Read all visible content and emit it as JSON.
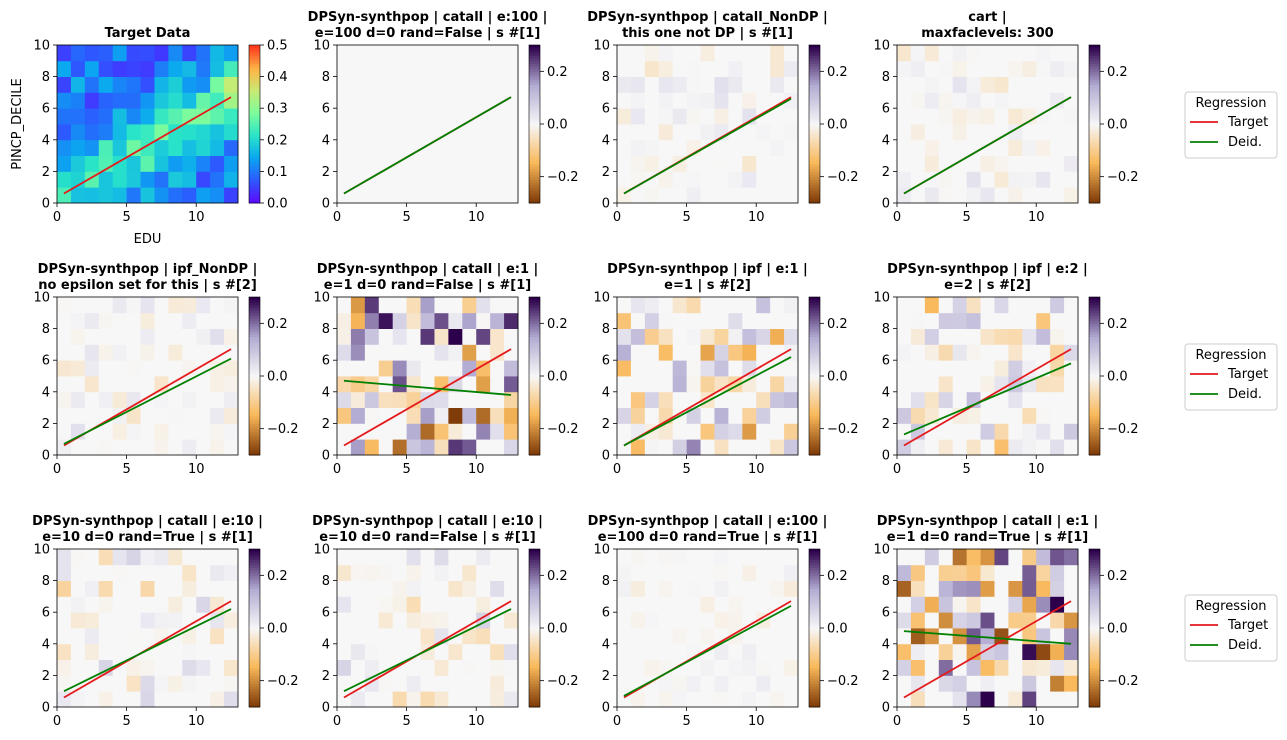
{
  "colors": {
    "target_line": "#e41a1c",
    "deid_line": "#008000",
    "target_cmap": [
      "#5b0cff",
      "#2c5bff",
      "#0aa8f0",
      "#29e4c8",
      "#7dfc9c",
      "#c7ec74",
      "#ffb347",
      "#ff3b1f"
    ],
    "diff_cmap_neg": "#7f3b08",
    "diff_cmap_mid": "#f7f7f7",
    "diff_cmap_pos": "#2d004b"
  },
  "legend": {
    "title": "Regression",
    "items": [
      {
        "label": "Target",
        "color": "#e41a1c"
      },
      {
        "label": "Deid.",
        "color": "#008000"
      }
    ]
  },
  "chart_data": [
    {
      "type": "heatmap",
      "title_lines": [
        "Target Data"
      ],
      "xlabel": "EDU",
      "ylabel": "PINCP_DECILE",
      "xlim": [
        0,
        13
      ],
      "ylim": [
        0,
        10
      ],
      "xticks": [
        "0",
        "5",
        "10"
      ],
      "yticks": [
        "0",
        "2",
        "4",
        "6",
        "8",
        "10"
      ],
      "colorbar": {
        "min": 0.0,
        "max": 0.5,
        "ticks": [
          "0.0",
          "0.1",
          "0.2",
          "0.3",
          "0.4",
          "0.5"
        ],
        "cmap": "rainbow"
      },
      "seed": 7,
      "intensity": 0.35,
      "target_line": [
        [
          0.5,
          0.6
        ],
        [
          12.5,
          6.7
        ]
      ],
      "deid_line": null
    },
    {
      "type": "heatmap",
      "title_lines": [
        "DPSyn-synthpop | catall | e:100 |",
        "e=100 d=0 rand=False | s #[1]"
      ],
      "xlim": [
        0,
        13
      ],
      "ylim": [
        0,
        10
      ],
      "xticks": [
        "0",
        "5",
        "10"
      ],
      "yticks": [
        "0",
        "2",
        "4",
        "6",
        "8",
        "10"
      ],
      "colorbar": {
        "min": -0.3,
        "max": 0.3,
        "ticks": [
          "0.2",
          "0.0",
          "−0.2"
        ],
        "cmap": "PuOr"
      },
      "seed": 1,
      "intensity": 0.0,
      "target_line": [
        [
          0.5,
          0.6
        ],
        [
          12.5,
          6.7
        ]
      ],
      "deid_line": [
        [
          0.5,
          0.6
        ],
        [
          12.5,
          6.7
        ]
      ]
    },
    {
      "type": "heatmap",
      "title_lines": [
        "DPSyn-synthpop | catall_NonDP |",
        "this one not DP | s #[1]"
      ],
      "xlim": [
        0,
        13
      ],
      "ylim": [
        0,
        10
      ],
      "xticks": [
        "0",
        "5",
        "10"
      ],
      "yticks": [
        "0",
        "2",
        "4",
        "6",
        "8",
        "10"
      ],
      "colorbar": {
        "min": -0.3,
        "max": 0.3,
        "ticks": [
          "0.2",
          "0.0",
          "−0.2"
        ],
        "cmap": "PuOr"
      },
      "seed": 2,
      "intensity": 0.12,
      "target_line": [
        [
          0.5,
          0.6
        ],
        [
          12.5,
          6.7
        ]
      ],
      "deid_line": [
        [
          0.5,
          0.6
        ],
        [
          12.5,
          6.6
        ]
      ]
    },
    {
      "type": "heatmap",
      "title_lines": [
        "cart |",
        "maxfaclevels: 300"
      ],
      "xlim": [
        0,
        13
      ],
      "ylim": [
        0,
        10
      ],
      "xticks": [
        "0",
        "5",
        "10"
      ],
      "yticks": [
        "0",
        "2",
        "4",
        "6",
        "8",
        "10"
      ],
      "colorbar": {
        "min": -0.3,
        "max": 0.3,
        "ticks": [
          "0.2",
          "0.0",
          "−0.2"
        ],
        "cmap": "PuOr"
      },
      "seed": 3,
      "intensity": 0.12,
      "target_line": [
        [
          0.5,
          0.6
        ],
        [
          12.5,
          6.7
        ]
      ],
      "deid_line": [
        [
          0.5,
          0.6
        ],
        [
          12.5,
          6.7
        ]
      ]
    },
    {
      "type": "heatmap",
      "title_lines": [
        "DPSyn-synthpop | ipf_NonDP |",
        "no epsilon set for this | s #[2]"
      ],
      "xlim": [
        0,
        13
      ],
      "ylim": [
        0,
        10
      ],
      "xticks": [
        "0",
        "5",
        "10"
      ],
      "yticks": [
        "0",
        "2",
        "4",
        "6",
        "8",
        "10"
      ],
      "colorbar": {
        "min": -0.3,
        "max": 0.3,
        "ticks": [
          "0.2",
          "0.0",
          "−0.2"
        ],
        "cmap": "PuOr"
      },
      "seed": 4,
      "intensity": 0.13,
      "target_line": [
        [
          0.5,
          0.6
        ],
        [
          12.5,
          6.7
        ]
      ],
      "deid_line": [
        [
          0.5,
          0.7
        ],
        [
          12.5,
          6.1
        ]
      ]
    },
    {
      "type": "heatmap",
      "title_lines": [
        "DPSyn-synthpop | catall | e:1 |",
        "e=1 d=0 rand=False | s #[1]"
      ],
      "xlim": [
        0,
        13
      ],
      "ylim": [
        0,
        10
      ],
      "xticks": [
        "0",
        "5",
        "10"
      ],
      "yticks": [
        "0",
        "2",
        "4",
        "6",
        "8",
        "10"
      ],
      "colorbar": {
        "min": -0.3,
        "max": 0.3,
        "ticks": [
          "0.2",
          "0.0",
          "−0.2"
        ],
        "cmap": "PuOr"
      },
      "seed": 5,
      "intensity": 0.9,
      "target_line": [
        [
          0.5,
          0.6
        ],
        [
          12.5,
          6.7
        ]
      ],
      "deid_line": [
        [
          0.5,
          4.7
        ],
        [
          12.5,
          3.8
        ]
      ]
    },
    {
      "type": "heatmap",
      "title_lines": [
        "DPSyn-synthpop | ipf | e:1 |",
        "e=1 | s #[2]"
      ],
      "xlim": [
        0,
        13
      ],
      "ylim": [
        0,
        10
      ],
      "xticks": [
        "0",
        "5",
        "10"
      ],
      "yticks": [
        "0",
        "2",
        "4",
        "6",
        "8",
        "10"
      ],
      "colorbar": {
        "min": -0.3,
        "max": 0.3,
        "ticks": [
          "0.2",
          "0.0",
          "−0.2"
        ],
        "cmap": "PuOr"
      },
      "seed": 6,
      "intensity": 0.55,
      "target_line": [
        [
          0.5,
          0.6
        ],
        [
          12.5,
          6.7
        ]
      ],
      "deid_line": [
        [
          0.5,
          0.6
        ],
        [
          12.5,
          6.2
        ]
      ]
    },
    {
      "type": "heatmap",
      "title_lines": [
        "DPSyn-synthpop | ipf | e:2 |",
        "e=2 | s #[2]"
      ],
      "xlim": [
        0,
        13
      ],
      "ylim": [
        0,
        10
      ],
      "xticks": [
        "0",
        "5",
        "10"
      ],
      "yticks": [
        "0",
        "2",
        "4",
        "6",
        "8",
        "10"
      ],
      "colorbar": {
        "min": -0.3,
        "max": 0.3,
        "ticks": [
          "0.2",
          "0.0",
          "−0.2"
        ],
        "cmap": "PuOr"
      },
      "seed": 8,
      "intensity": 0.4,
      "target_line": [
        [
          0.5,
          0.6
        ],
        [
          12.5,
          6.7
        ]
      ],
      "deid_line": [
        [
          0.5,
          1.3
        ],
        [
          12.5,
          5.8
        ]
      ]
    },
    {
      "type": "heatmap",
      "title_lines": [
        "DPSyn-synthpop | catall | e:10 |",
        "e=10 d=0 rand=True | s #[1]"
      ],
      "xlim": [
        0,
        13
      ],
      "ylim": [
        0,
        10
      ],
      "xticks": [
        "0",
        "5",
        "10"
      ],
      "yticks": [
        "0",
        "2",
        "4",
        "6",
        "8",
        "10"
      ],
      "colorbar": {
        "min": -0.3,
        "max": 0.3,
        "ticks": [
          "0.2",
          "0.0",
          "−0.2"
        ],
        "cmap": "PuOr"
      },
      "seed": 9,
      "intensity": 0.22,
      "target_line": [
        [
          0.5,
          0.6
        ],
        [
          12.5,
          6.7
        ]
      ],
      "deid_line": [
        [
          0.5,
          1.0
        ],
        [
          12.5,
          6.2
        ]
      ]
    },
    {
      "type": "heatmap",
      "title_lines": [
        "DPSyn-synthpop | catall | e:10 |",
        "e=10 d=0 rand=False | s #[1]"
      ],
      "xlim": [
        0,
        13
      ],
      "ylim": [
        0,
        10
      ],
      "xticks": [
        "0",
        "5",
        "10"
      ],
      "yticks": [
        "0",
        "2",
        "4",
        "6",
        "8",
        "10"
      ],
      "colorbar": {
        "min": -0.3,
        "max": 0.3,
        "ticks": [
          "0.2",
          "0.0",
          "−0.2"
        ],
        "cmap": "PuOr"
      },
      "seed": 10,
      "intensity": 0.2,
      "target_line": [
        [
          0.5,
          0.6
        ],
        [
          12.5,
          6.7
        ]
      ],
      "deid_line": [
        [
          0.5,
          1.0
        ],
        [
          12.5,
          6.2
        ]
      ]
    },
    {
      "type": "heatmap",
      "title_lines": [
        "DPSyn-synthpop | catall | e:100 |",
        "e=100 d=0 rand=True | s #[1]"
      ],
      "xlim": [
        0,
        13
      ],
      "ylim": [
        0,
        10
      ],
      "xticks": [
        "0",
        "5",
        "10"
      ],
      "yticks": [
        "0",
        "2",
        "4",
        "6",
        "8",
        "10"
      ],
      "colorbar": {
        "min": -0.3,
        "max": 0.3,
        "ticks": [
          "0.2",
          "0.0",
          "−0.2"
        ],
        "cmap": "PuOr"
      },
      "seed": 11,
      "intensity": 0.08,
      "target_line": [
        [
          0.5,
          0.6
        ],
        [
          12.5,
          6.7
        ]
      ],
      "deid_line": [
        [
          0.5,
          0.7
        ],
        [
          12.5,
          6.4
        ]
      ]
    },
    {
      "type": "heatmap",
      "title_lines": [
        "DPSyn-synthpop | catall | e:1 |",
        "e=1 d=0 rand=True | s #[1]"
      ],
      "xlim": [
        0,
        13
      ],
      "ylim": [
        0,
        10
      ],
      "xticks": [
        "0",
        "5",
        "10"
      ],
      "yticks": [
        "0",
        "2",
        "4",
        "6",
        "8",
        "10"
      ],
      "colorbar": {
        "min": -0.3,
        "max": 0.3,
        "ticks": [
          "0.2",
          "0.0",
          "−0.2"
        ],
        "cmap": "PuOr"
      },
      "seed": 12,
      "intensity": 0.9,
      "target_line": [
        [
          0.5,
          0.6
        ],
        [
          12.5,
          6.7
        ]
      ],
      "deid_line": [
        [
          0.5,
          4.8
        ],
        [
          12.5,
          4.0
        ]
      ]
    }
  ]
}
